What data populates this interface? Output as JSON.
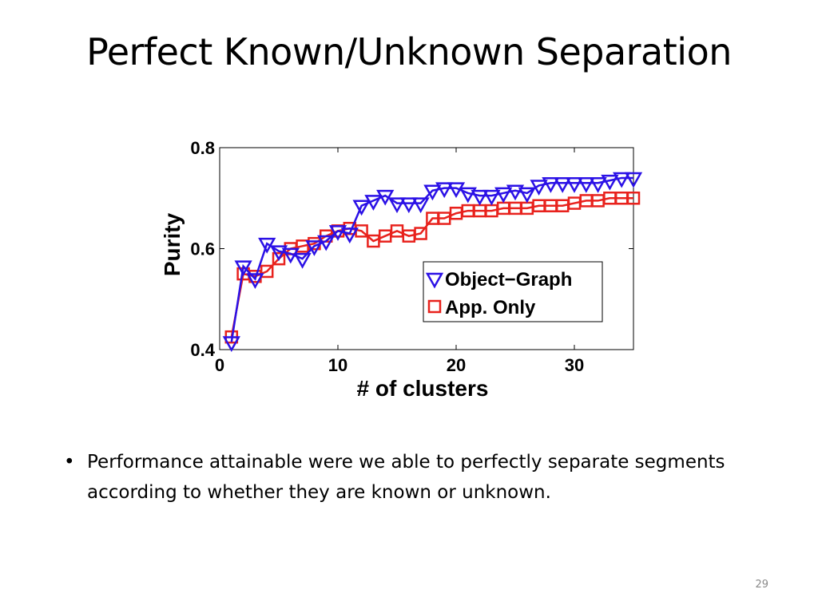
{
  "slide": {
    "title": "Perfect Known/Unknown Separation",
    "bullet": "Performance attainable were we able to perfectly separate segments according to whether they are known or unknown.",
    "page_number": "29"
  },
  "chart_data": {
    "type": "line",
    "xlabel": "# of clusters",
    "ylabel": "Purity",
    "xlim": [
      0,
      35
    ],
    "ylim": [
      0.4,
      0.8
    ],
    "xticks": [
      0,
      10,
      20,
      30
    ],
    "yticks": [
      0.4,
      0.6,
      0.8
    ],
    "xtick_labels": [
      "0",
      "10",
      "20",
      "30"
    ],
    "ytick_labels": [
      "0.4",
      "0.6",
      "0.8"
    ],
    "grid": false,
    "legend_position": "lower-right",
    "x": [
      1,
      2,
      3,
      4,
      5,
      6,
      7,
      8,
      9,
      10,
      11,
      12,
      13,
      14,
      15,
      16,
      17,
      18,
      19,
      20,
      21,
      22,
      23,
      24,
      25,
      26,
      27,
      28,
      29,
      30,
      31,
      32,
      33,
      34,
      35
    ],
    "series": [
      {
        "name": "Object−Graph",
        "color": "#2b11e6",
        "marker": "triangle-down",
        "values": [
          0.415,
          0.565,
          0.54,
          0.61,
          0.595,
          0.59,
          0.58,
          0.605,
          0.615,
          0.635,
          0.63,
          0.685,
          0.695,
          0.705,
          0.69,
          0.69,
          0.69,
          0.715,
          0.72,
          0.72,
          0.71,
          0.705,
          0.705,
          0.71,
          0.715,
          0.71,
          0.725,
          0.73,
          0.73,
          0.73,
          0.73,
          0.73,
          0.735,
          0.74,
          0.74
        ]
      },
      {
        "name": "App. Only",
        "color": "#e8221d",
        "marker": "square",
        "values": [
          0.425,
          0.55,
          0.545,
          0.555,
          0.58,
          0.6,
          0.605,
          0.61,
          0.625,
          0.635,
          0.64,
          0.635,
          0.615,
          0.625,
          0.635,
          0.625,
          0.63,
          0.66,
          0.66,
          0.67,
          0.675,
          0.675,
          0.675,
          0.68,
          0.68,
          0.68,
          0.685,
          0.685,
          0.685,
          0.69,
          0.695,
          0.695,
          0.7,
          0.7,
          0.7
        ]
      }
    ]
  }
}
